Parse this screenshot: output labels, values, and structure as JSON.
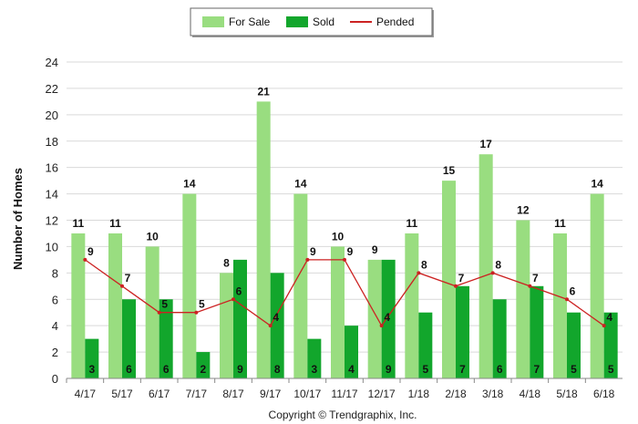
{
  "chart_data": {
    "type": "bar",
    "title": "",
    "xlabel": "",
    "ylabel": "Number of Homes",
    "ylim": [
      0,
      24
    ],
    "yticks": [
      0,
      2,
      4,
      6,
      8,
      10,
      12,
      14,
      16,
      18,
      20,
      22,
      24
    ],
    "grid": true,
    "legend_position": "top-center",
    "categories": [
      "4/17",
      "5/17",
      "6/17",
      "7/17",
      "8/17",
      "9/17",
      "10/17",
      "11/17",
      "12/17",
      "1/18",
      "2/18",
      "3/18",
      "4/18",
      "5/18",
      "6/18"
    ],
    "series": [
      {
        "name": "For Sale",
        "type": "bar",
        "color": "#99dd80",
        "values": [
          11,
          11,
          10,
          14,
          8,
          21,
          14,
          10,
          9,
          11,
          15,
          17,
          12,
          11,
          14
        ]
      },
      {
        "name": "Sold",
        "type": "bar",
        "color": "#12a62c",
        "values": [
          3,
          6,
          6,
          2,
          9,
          8,
          3,
          4,
          9,
          5,
          7,
          6,
          7,
          5,
          5
        ]
      },
      {
        "name": "Pended",
        "type": "line",
        "color": "#cc2222",
        "values": [
          9,
          7,
          5,
          5,
          6,
          4,
          9,
          9,
          4,
          8,
          7,
          8,
          7,
          6,
          4
        ]
      }
    ],
    "footer": "Copyright © Trendgraphix, Inc."
  }
}
